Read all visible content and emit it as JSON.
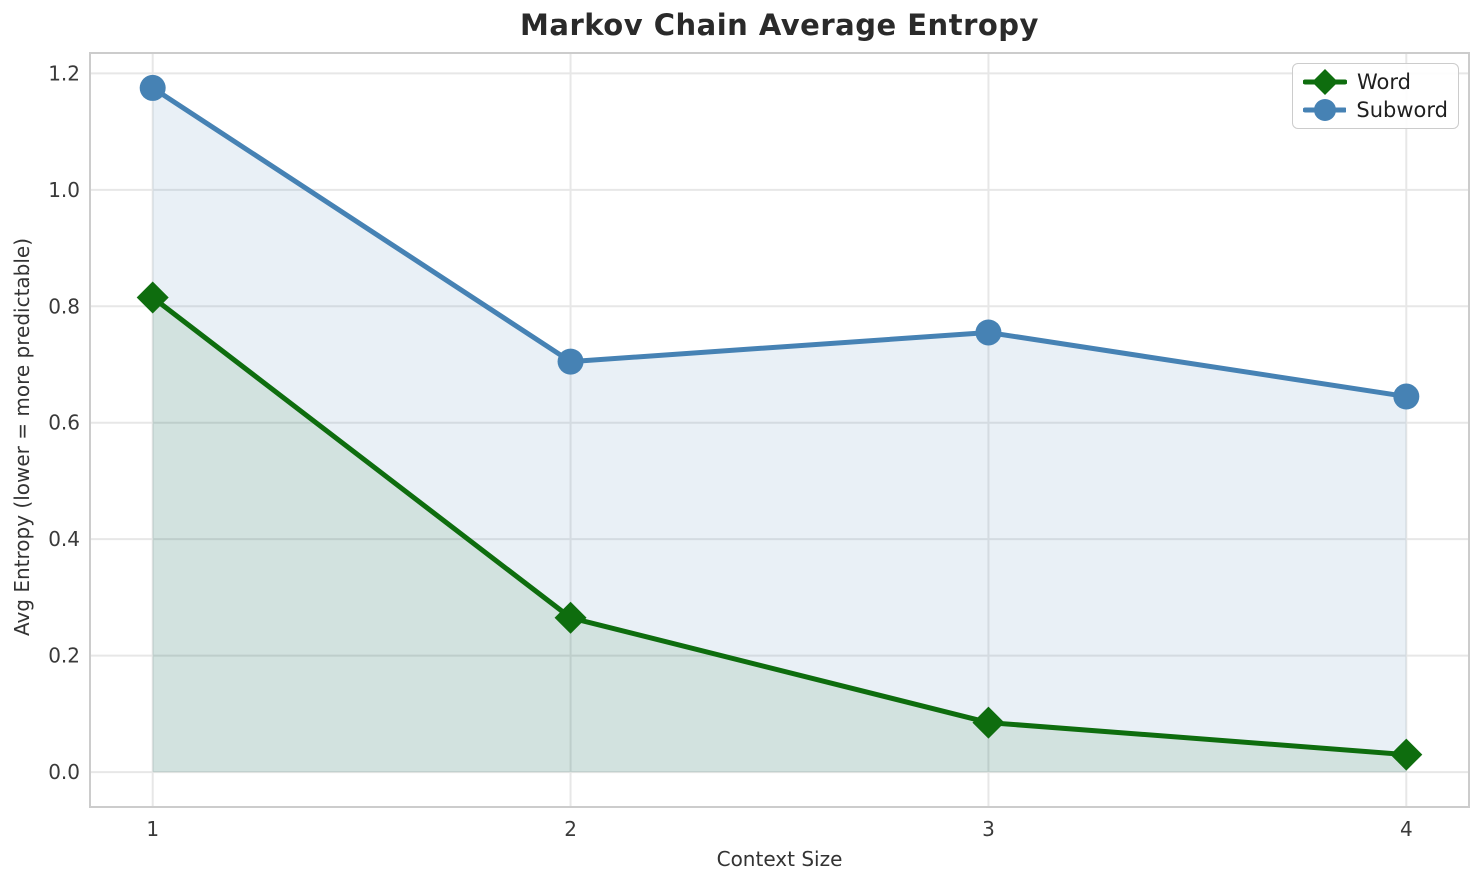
{
  "chart_data": {
    "type": "line",
    "title": "Markov Chain Average Entropy",
    "xlabel": "Context Size",
    "ylabel": "Avg Entropy (lower = more predictable)",
    "x": [
      1,
      2,
      3,
      4
    ],
    "series": [
      {
        "name": "Word",
        "marker": "diamond",
        "color": "#0e6d0e",
        "fill_color": "rgba(20,110,20,0.11)",
        "values": [
          0.815,
          0.265,
          0.085,
          0.03
        ]
      },
      {
        "name": "Subword",
        "marker": "circle",
        "color": "#4682b4",
        "fill_color": "rgba(70,130,180,0.12)",
        "values": [
          1.175,
          0.705,
          0.755,
          0.645
        ]
      }
    ],
    "xticks": [
      1,
      2,
      3,
      4
    ],
    "xtick_labels": [
      "1",
      "2",
      "3",
      "4"
    ],
    "yticks": [
      0,
      0.2,
      0.4,
      0.6,
      0.8,
      1.0,
      1.2
    ],
    "ytick_labels": [
      "0.0",
      "0.2",
      "0.4",
      "0.6",
      "0.8",
      "1.0",
      "1.2"
    ],
    "xlim": [
      0.85,
      4.15
    ],
    "ylim": [
      -0.06,
      1.235
    ],
    "grid": true,
    "fill_to_zero": true,
    "legend": {
      "position": "top-right",
      "entries": [
        "Word",
        "Subword"
      ]
    },
    "style": {
      "background": "#ffffff",
      "grid_color": "#e7e7e7",
      "spine_color": "#cccccc",
      "text_color": "#3a3a3a",
      "title_color": "#2a2a2a"
    }
  }
}
